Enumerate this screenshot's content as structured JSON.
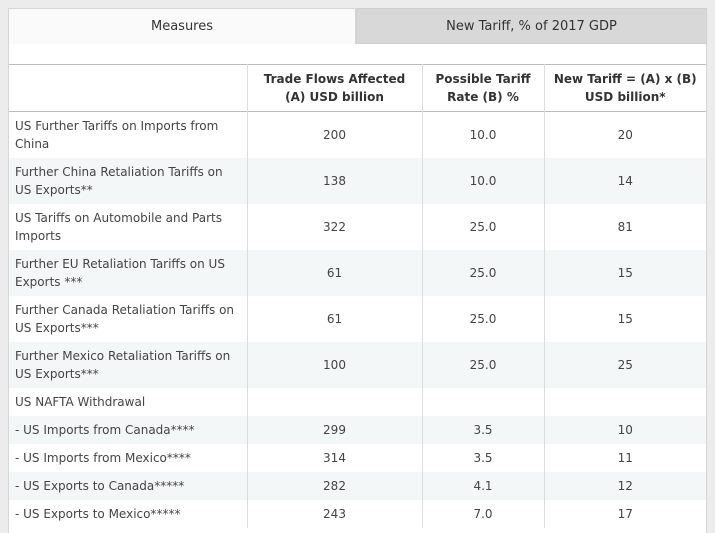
{
  "tabs": [
    {
      "label": "Measures",
      "active": true
    },
    {
      "label": "New Tariff, % of 2017 GDP",
      "active": false
    }
  ],
  "table": {
    "headers": [
      "",
      "Trade Flows Affected (A) USD billion",
      "Possible Tariff Rate (B) %",
      "New Tariff = (A) x (B) USD billion*"
    ],
    "rows": [
      {
        "measure": "US Further Tariffs on Imports from China",
        "flows": "200",
        "rate": "10.0",
        "tariff": "20"
      },
      {
        "measure": "Further China Retaliation Tariffs on US Exports**",
        "flows": "138",
        "rate": "10.0",
        "tariff": "14"
      },
      {
        "measure": "US Tariffs on Automobile and Parts Imports",
        "flows": "322",
        "rate": "25.0",
        "tariff": "81"
      },
      {
        "measure": "Further EU Retaliation Tariffs on US Exports ***",
        "flows": "61",
        "rate": "25.0",
        "tariff": "15"
      },
      {
        "measure": "Further Canada Retaliation Tariffs on US Exports***",
        "flows": "61",
        "rate": "25.0",
        "tariff": "15"
      },
      {
        "measure": "Further Mexico Retaliation Tariffs on US Exports***",
        "flows": "100",
        "rate": "25.0",
        "tariff": "25"
      },
      {
        "measure": "US NAFTA Withdrawal",
        "flows": "",
        "rate": "",
        "tariff": ""
      },
      {
        "measure": "- US Imports from Canada****",
        "flows": "299",
        "rate": "3.5",
        "tariff": "10"
      },
      {
        "measure": "- US Imports from Mexico****",
        "flows": "314",
        "rate": "3.5",
        "tariff": "11"
      },
      {
        "measure": "- US Exports to Canada*****",
        "flows": "282",
        "rate": "4.1",
        "tariff": "12"
      },
      {
        "measure": "- US Exports to Mexico*****",
        "flows": "243",
        "rate": "7.0",
        "tariff": "17"
      }
    ]
  }
}
